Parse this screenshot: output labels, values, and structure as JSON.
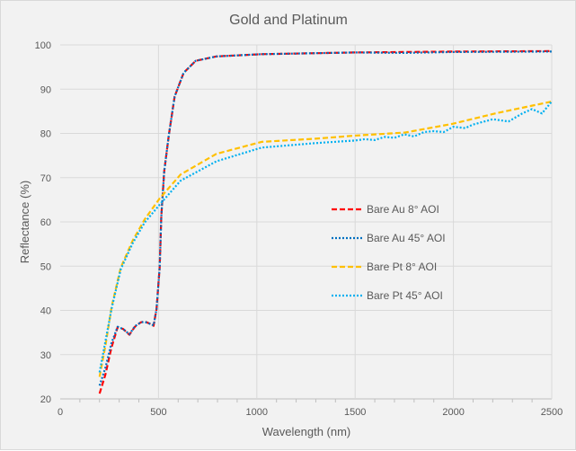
{
  "chart_data": {
    "type": "line",
    "title": "Gold and Platinum",
    "xlabel": "Wavelength (nm)",
    "ylabel": "Reflectance (%)",
    "xlim": [
      0,
      2500
    ],
    "ylim": [
      20,
      100
    ],
    "x_ticks": [
      0,
      500,
      1000,
      1500,
      2000,
      2500
    ],
    "y_ticks": [
      20,
      30,
      40,
      50,
      60,
      70,
      80,
      90,
      100
    ],
    "grid": true,
    "legend_position": "center-right",
    "series": [
      {
        "name": "Bare Au 8° AOI",
        "color": "#ff0000",
        "dash": "dashed",
        "x": [
          200,
          230,
          260,
          292,
          320,
          352,
          380,
          410,
          430,
          455,
          475,
          490,
          506,
          514,
          529,
          552,
          582,
          628,
          689,
          795,
          1024,
          1500,
          2000,
          2500
        ],
        "y": [
          21.2,
          25.5,
          31.5,
          36.2,
          35.8,
          34.5,
          36.3,
          37.3,
          37.5,
          37.0,
          36.5,
          40.3,
          49.7,
          61.2,
          71.4,
          79.5,
          88.3,
          93.7,
          96.4,
          97.4,
          97.9,
          98.3,
          98.5,
          98.6
        ]
      },
      {
        "name": "Bare Au 45° AOI",
        "color": "#0070c0",
        "dash": "dotted",
        "x": [
          200,
          230,
          260,
          292,
          320,
          352,
          380,
          410,
          430,
          455,
          475,
          490,
          506,
          514,
          529,
          552,
          582,
          628,
          689,
          795,
          1024,
          1500,
          1750,
          2000,
          2500
        ],
        "y": [
          23.0,
          27.0,
          32.5,
          36.3,
          35.8,
          34.6,
          36.4,
          37.3,
          37.4,
          37.0,
          36.6,
          40.3,
          49.7,
          61.2,
          71.4,
          79.5,
          88.3,
          93.7,
          96.4,
          97.4,
          97.9,
          98.3,
          98.2,
          98.4,
          98.5
        ]
      },
      {
        "name": "Bare Pt 8° AOI",
        "color": "#ffc000",
        "dash": "dashed",
        "x": [
          200,
          230,
          262,
          308,
          369,
          430,
          506,
          612,
          795,
          1024,
          1298,
          1496,
          1755,
          1998,
          2212,
          2500
        ],
        "y": [
          25.0,
          32.0,
          40.9,
          49.7,
          55.8,
          60.6,
          65.3,
          70.7,
          75.4,
          78.1,
          78.8,
          79.5,
          80.2,
          82.2,
          84.5,
          87.2
        ]
      },
      {
        "name": "Bare Pt 45° AOI",
        "color": "#00b0f0",
        "dash": "dotted",
        "x": [
          200,
          230,
          262,
          308,
          369,
          430,
          506,
          612,
          795,
          1024,
          1298,
          1500,
          1550,
          1600,
          1650,
          1700,
          1750,
          1800,
          1850,
          1900,
          1950,
          2000,
          2060,
          2100,
          2150,
          2200,
          2280,
          2350,
          2400,
          2450,
          2500
        ],
        "y": [
          26.0,
          33.0,
          40.5,
          49.3,
          55.2,
          59.9,
          63.9,
          69.3,
          73.7,
          76.8,
          77.8,
          78.4,
          78.7,
          78.5,
          79.2,
          79.0,
          79.8,
          79.3,
          80.3,
          80.5,
          80.3,
          81.5,
          81.2,
          82.0,
          82.6,
          83.2,
          82.7,
          84.5,
          85.5,
          84.5,
          87.2
        ]
      }
    ]
  }
}
